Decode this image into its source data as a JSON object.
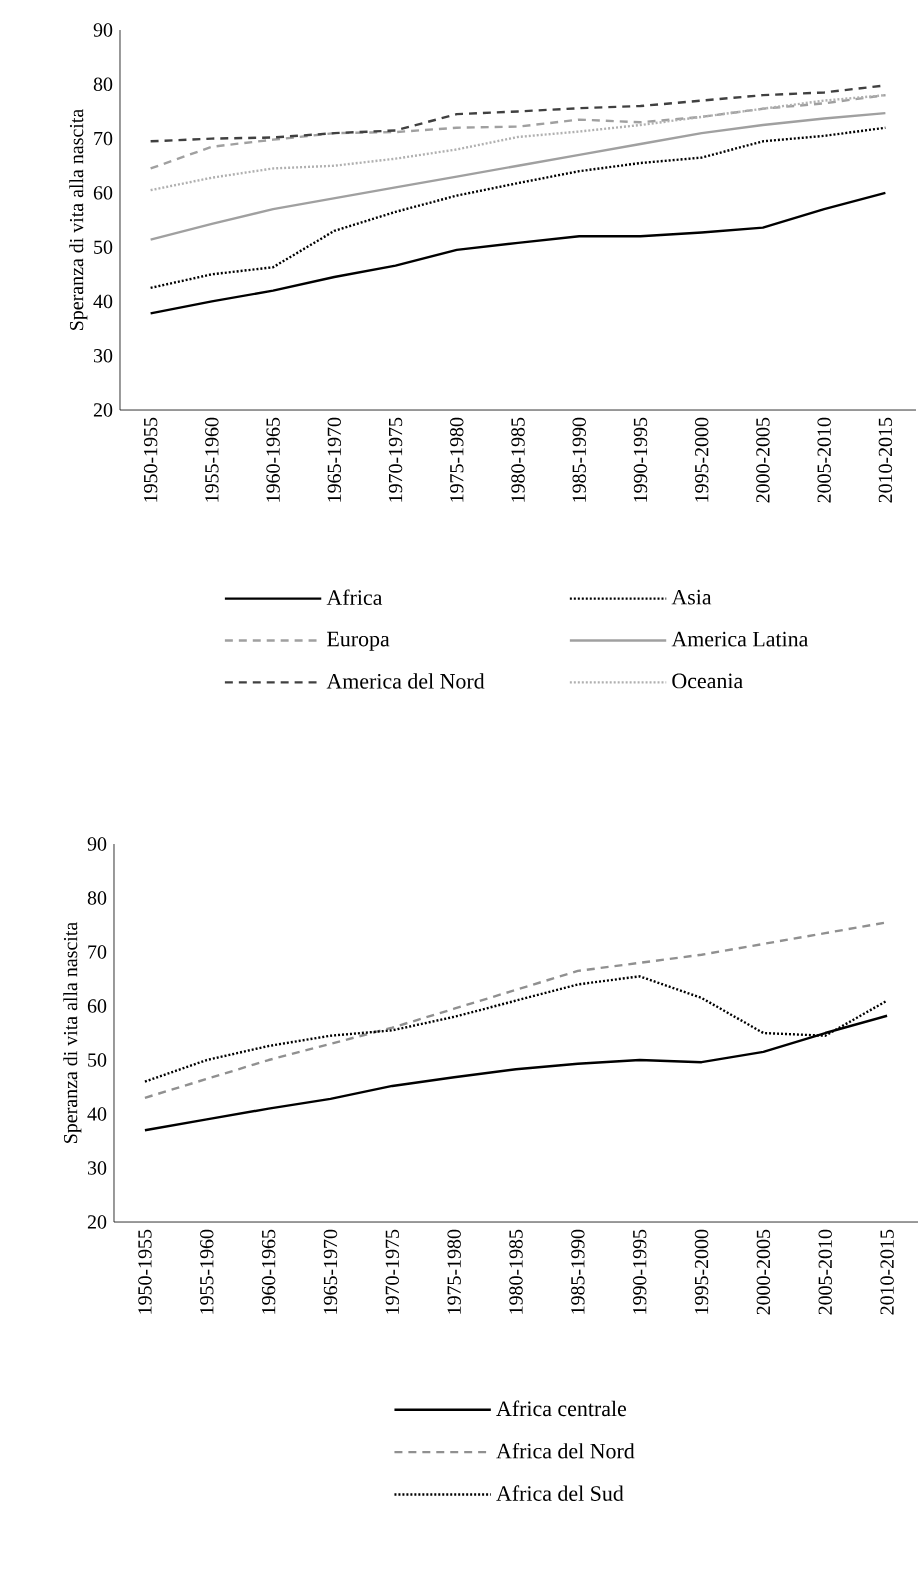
{
  "chart_data": [
    {
      "type": "line",
      "ylabel": "Speranza di vita alla nascita",
      "categories": [
        "1950-1955",
        "1955-1960",
        "1960-1965",
        "1965-1970",
        "1970-1975",
        "1975-1980",
        "1980-1985",
        "1985-1990",
        "1990-1995",
        "1995-2000",
        "2000-2005",
        "2005-2010",
        "2010-2015"
      ],
      "ylim": [
        20,
        90
      ],
      "yticks": [
        20,
        30,
        40,
        50,
        60,
        70,
        80,
        90
      ],
      "legend": "bottom",
      "grid": false,
      "series": [
        {
          "name": "Africa",
          "color": "#000000",
          "line_style": "solid",
          "values": [
            37.8,
            40,
            42,
            44.5,
            46.6,
            49.5,
            50.8,
            52,
            52,
            52.7,
            53.6,
            57,
            60
          ]
        },
        {
          "name": "Asia",
          "color": "#000000",
          "line_style": "dotted",
          "values": [
            42.5,
            45,
            46.3,
            53,
            56.5,
            59.5,
            61.8,
            64,
            65.5,
            66.5,
            69.5,
            70.5,
            72
          ]
        },
        {
          "name": "Europa",
          "color": "#a0a0a0",
          "line_style": "dashed",
          "values": [
            64.5,
            68.5,
            69.8,
            71,
            71.2,
            72,
            72.2,
            73.5,
            73,
            74,
            75.5,
            76.5,
            78
          ]
        },
        {
          "name": "America Latina",
          "color": "#a0a0a0",
          "line_style": "solid",
          "values": [
            51.4,
            54.3,
            57,
            59,
            61,
            63,
            65,
            67,
            69,
            71,
            72.5,
            73.7,
            74.7
          ]
        },
        {
          "name": "America del Nord",
          "color": "#404040",
          "line_style": "dashed",
          "values": [
            69.5,
            70,
            70.2,
            71,
            71.5,
            74.5,
            75,
            75.6,
            76,
            77,
            78,
            78.5,
            79.8
          ]
        },
        {
          "name": "Oceania",
          "color": "#b0b0b0",
          "line_style": "dotted",
          "values": [
            60.5,
            62.8,
            64.5,
            65,
            66.3,
            68,
            70.3,
            71.3,
            72.5,
            74,
            75.5,
            77,
            78
          ]
        }
      ]
    },
    {
      "type": "line",
      "ylabel": "Speranza di vita alla nascita",
      "categories": [
        "1950-1955",
        "1955-1960",
        "1960-1965",
        "1965-1970",
        "1970-1975",
        "1975-1980",
        "1980-1985",
        "1985-1990",
        "1990-1995",
        "1995-2000",
        "2000-2005",
        "2005-2010",
        "2010-2015"
      ],
      "ylim": [
        20,
        90
      ],
      "yticks": [
        20,
        30,
        40,
        50,
        60,
        70,
        80,
        90
      ],
      "legend": "bottom",
      "grid": false,
      "series": [
        {
          "name": "Africa centrale",
          "color": "#000000",
          "line_style": "solid",
          "values": [
            37,
            39,
            41,
            42.8,
            45.2,
            46.8,
            48.3,
            49.3,
            50,
            49.6,
            51.5,
            55,
            58.2
          ]
        },
        {
          "name": "Africa del Nord",
          "color": "#909090",
          "line_style": "dashed",
          "values": [
            43,
            46.5,
            50,
            53,
            56,
            59.5,
            63,
            66.5,
            68,
            69.5,
            71.5,
            73.5,
            75.5
          ]
        },
        {
          "name": "Africa del Sud",
          "color": "#000000",
          "line_style": "dotted",
          "values": [
            46,
            50,
            52.6,
            54.5,
            55.5,
            58,
            61,
            64,
            65.5,
            61.5,
            55,
            54.5,
            61
          ]
        }
      ]
    }
  ]
}
